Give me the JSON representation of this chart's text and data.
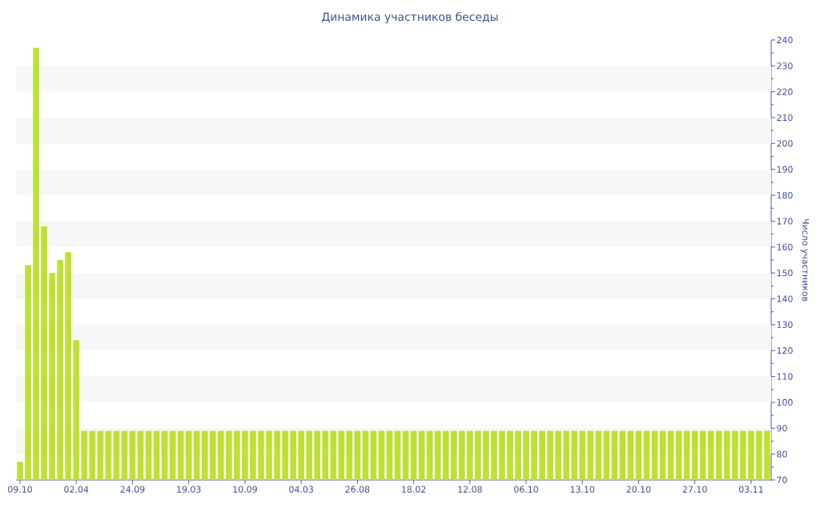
{
  "chart_data": {
    "type": "bar",
    "title": "Динамика участников беседы",
    "ylabel": "Число участников",
    "categories": [
      "09.10",
      null,
      null,
      null,
      null,
      null,
      null,
      "02.04",
      null,
      null,
      null,
      null,
      null,
      null,
      "24.09",
      null,
      null,
      null,
      null,
      null,
      null,
      "19.03",
      null,
      null,
      null,
      null,
      null,
      null,
      "10.09",
      null,
      null,
      null,
      null,
      null,
      null,
      "04.03",
      null,
      null,
      null,
      null,
      null,
      null,
      "26.08",
      null,
      null,
      null,
      null,
      null,
      null,
      "18.02",
      null,
      null,
      null,
      null,
      null,
      null,
      "12.08",
      null,
      null,
      null,
      null,
      null,
      null,
      "06.10",
      null,
      null,
      null,
      null,
      null,
      null,
      "13.10",
      null,
      null,
      null,
      null,
      null,
      null,
      "20.10",
      null,
      null,
      null,
      null,
      null,
      null,
      "27.10",
      null,
      null,
      null,
      null,
      null,
      null,
      "03.11",
      null,
      null
    ],
    "values": [
      77,
      153,
      237,
      168,
      150,
      155,
      158,
      124,
      89,
      89,
      89,
      89,
      89,
      89,
      89,
      89,
      89,
      89,
      89,
      89,
      89,
      89,
      89,
      89,
      89,
      89,
      89,
      89,
      89,
      89,
      89,
      89,
      89,
      89,
      89,
      89,
      89,
      89,
      89,
      89,
      89,
      89,
      89,
      89,
      89,
      89,
      89,
      89,
      89,
      89,
      89,
      89,
      89,
      89,
      89,
      89,
      89,
      89,
      89,
      89,
      89,
      89,
      89,
      89,
      89,
      89,
      89,
      89,
      89,
      89,
      89,
      89,
      89,
      89,
      89,
      89,
      89,
      89,
      89,
      89,
      89,
      89,
      89,
      89,
      89,
      89,
      89,
      89,
      89,
      89,
      89,
      89,
      89,
      89
    ],
    "color": "#bde132",
    "ylim": [
      70,
      240
    ],
    "yticks": [
      70,
      {
        "value": 75,
        "label": null
      },
      80,
      {
        "value": 85,
        "label": null
      },
      90,
      {
        "value": 95,
        "label": null
      },
      100,
      {
        "value": 105,
        "label": null
      },
      110,
      {
        "value": 115,
        "label": null
      },
      120,
      {
        "value": 125,
        "label": null
      },
      130,
      {
        "value": 135,
        "label": null
      },
      140,
      {
        "value": 145,
        "label": null
      },
      150,
      {
        "value": 155,
        "label": null
      },
      160,
      {
        "value": 165,
        "label": null
      },
      170,
      {
        "value": 175,
        "label": null
      },
      180,
      {
        "value": 185,
        "label": null
      },
      190,
      {
        "value": 195,
        "label": null
      },
      200,
      {
        "value": 205,
        "label": null
      },
      210,
      {
        "value": 215,
        "label": null
      },
      220,
      {
        "value": 225,
        "label": null
      },
      230,
      {
        "value": 235,
        "label": null
      },
      240
    ],
    "bands": [
      {
        "axis": "y",
        "from": 80,
        "to": 90,
        "color": "#f7f7f7"
      },
      {
        "axis": "y",
        "from": 100,
        "to": 110,
        "color": "#f7f7f7"
      },
      {
        "axis": "y",
        "from": 120,
        "to": 130,
        "color": "#f7f7f7"
      },
      {
        "axis": "y",
        "from": 140,
        "to": 150,
        "color": "#f7f7f7"
      },
      {
        "axis": "y",
        "from": 160,
        "to": 170,
        "color": "#f7f7f7"
      },
      {
        "axis": "y",
        "from": 180,
        "to": 190,
        "color": "#f7f7f7"
      },
      {
        "axis": "y",
        "from": 200,
        "to": 210,
        "color": "#f7f7f7"
      },
      {
        "axis": "y",
        "from": 220,
        "to": 230,
        "color": "#f7f7f7"
      }
    ]
  }
}
